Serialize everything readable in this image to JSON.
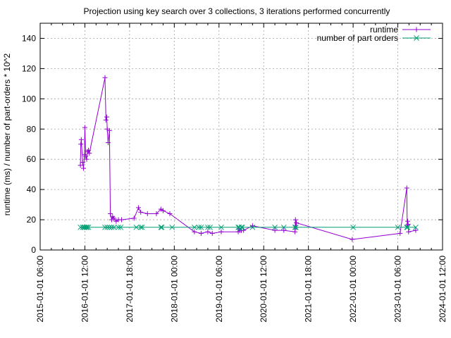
{
  "chart_data": {
    "type": "line",
    "title": "Projection using key search over 3 collections, 3 iterations performed concurrently",
    "xlabel": "",
    "ylabel": "runtime (ms) / number of part-orders * 10^2",
    "ylabel_display": "runtime (ms) / number of part-orders * 10^2",
    "xlim": [
      2015.0,
      2024.0
    ],
    "ylim": [
      0,
      150
    ],
    "yticks": [
      0,
      20,
      40,
      60,
      80,
      100,
      120,
      140
    ],
    "xtick_values": [
      2015,
      2016,
      2017,
      2018,
      2019,
      2020,
      2021,
      2022,
      2023,
      2024
    ],
    "xtick_labels": [
      "2015-01-01 06:00",
      "2016-01-01 12:00",
      "2017-01-01 18:00",
      "2018-01-01 00:00",
      "2019-01-01 06:00",
      "2020-01-01 12:00",
      "2021-01-01 18:00",
      "2022-01-01 00:00",
      "2023-01-01 06:00",
      "2024-01-01 12:00"
    ],
    "grid": true,
    "legend_position": "top-right",
    "series": [
      {
        "name": "runtime",
        "color": "#9400d3",
        "marker": "plus",
        "x": [
          2015.9,
          2015.91,
          2015.92,
          2015.95,
          2015.97,
          2015.99,
          2016.0,
          2016.02,
          2016.04,
          2016.06,
          2016.08,
          2016.1,
          2016.45,
          2016.47,
          2016.49,
          2016.5,
          2016.52,
          2016.55,
          2016.57,
          2016.6,
          2016.62,
          2016.65,
          2016.7,
          2016.75,
          2016.82,
          2017.1,
          2017.2,
          2017.25,
          2017.4,
          2017.6,
          2017.7,
          2017.75,
          2017.9,
          2018.45,
          2018.6,
          2018.75,
          2018.85,
          2019.05,
          2019.43,
          2019.45,
          2019.47,
          2019.5,
          2019.55,
          2019.75,
          2020.25,
          2020.45,
          2020.7,
          2020.71,
          2020.72,
          2020.73,
          2021.98,
          2023.05,
          2023.2,
          2023.21,
          2023.22,
          2023.23,
          2023.24,
          2023.4
        ],
        "y": [
          56,
          70,
          73,
          58,
          54,
          63,
          81,
          62,
          60,
          65,
          66,
          64,
          114,
          86,
          88,
          80,
          71,
          79,
          24,
          20,
          22,
          21,
          19,
          20,
          20,
          21,
          28,
          25,
          24,
          24,
          27,
          26,
          24,
          12,
          11,
          12,
          11,
          12,
          12,
          14,
          13,
          13,
          13,
          16,
          13,
          13,
          12,
          20,
          15,
          18,
          7,
          11,
          41,
          16,
          19,
          17,
          12,
          13
        ]
      },
      {
        "name": "number of part orders",
        "color": "#009e73",
        "marker": "x",
        "x": [
          2015.9,
          2015.95,
          2015.98,
          2016.0,
          2016.03,
          2016.05,
          2016.08,
          2016.45,
          2016.5,
          2016.55,
          2016.6,
          2016.65,
          2016.75,
          2016.8,
          2017.15,
          2017.25,
          2017.28,
          2017.7,
          2017.72,
          2017.95,
          2018.45,
          2018.55,
          2018.6,
          2018.75,
          2018.8,
          2019.05,
          2019.43,
          2019.45,
          2019.47,
          2019.5,
          2019.52,
          2019.75,
          2020.25,
          2020.45,
          2020.7,
          2020.72,
          2022.0,
          2023.0,
          2023.2,
          2023.22,
          2023.4
        ],
        "y": [
          15,
          15,
          15,
          15,
          15,
          15,
          15,
          15,
          15,
          15,
          15,
          15,
          15,
          15,
          15,
          15,
          15,
          15,
          15,
          15,
          15,
          15,
          15,
          15,
          15,
          15,
          15,
          15,
          14,
          15,
          15,
          15,
          15,
          15,
          15,
          15,
          15,
          15,
          15,
          15,
          15
        ]
      }
    ]
  }
}
